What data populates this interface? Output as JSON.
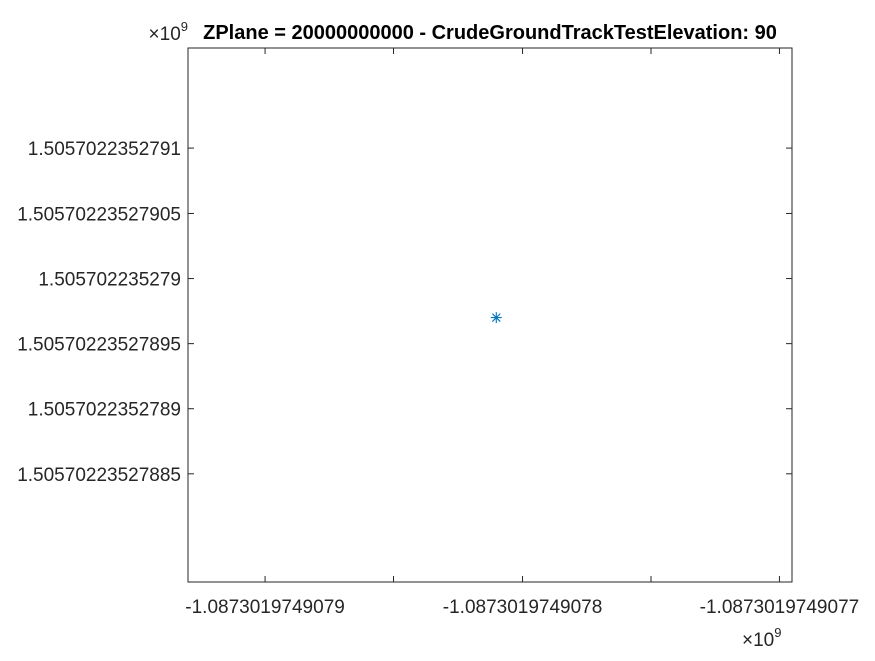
{
  "chart_data": {
    "type": "scatter",
    "title": "ZPlane = 20000000000 - CrudeGroundTrackTestElevation: 90",
    "xlabel": "",
    "ylabel": "",
    "x_tick_labels": [
      "-1.0873019749079",
      "-1.0873019749078",
      "-1.0873019749077"
    ],
    "y_tick_labels": [
      "1.5057022352791",
      "1.50570223527905",
      "1.505702235279",
      "1.50570223527895",
      "1.5057022352789",
      "1.50570223527885"
    ],
    "x_exponent": {
      "base": "×10",
      "power": "9"
    },
    "y_exponent": {
      "base": "×10",
      "power": "9"
    },
    "x_ticks": [
      -1.0873019749079,
      -1.0873019749078,
      -1.0873019749077
    ],
    "y_ticks": [
      1.5057022352791,
      1.50570223527905,
      1.505702235279,
      1.50570223527895,
      1.5057022352789,
      1.50570223527885
    ],
    "xlim": [
      -1.08730197490793,
      -1.087301974907695
    ],
    "ylim": [
      1.505702235278767,
      1.505702235279177
    ],
    "series": [
      {
        "marker": "asterisk",
        "color": "#0072BD",
        "x": [
          -1.08730197490781
        ],
        "y": [
          1.50570223527897
        ]
      }
    ],
    "grid": false,
    "box": true
  }
}
